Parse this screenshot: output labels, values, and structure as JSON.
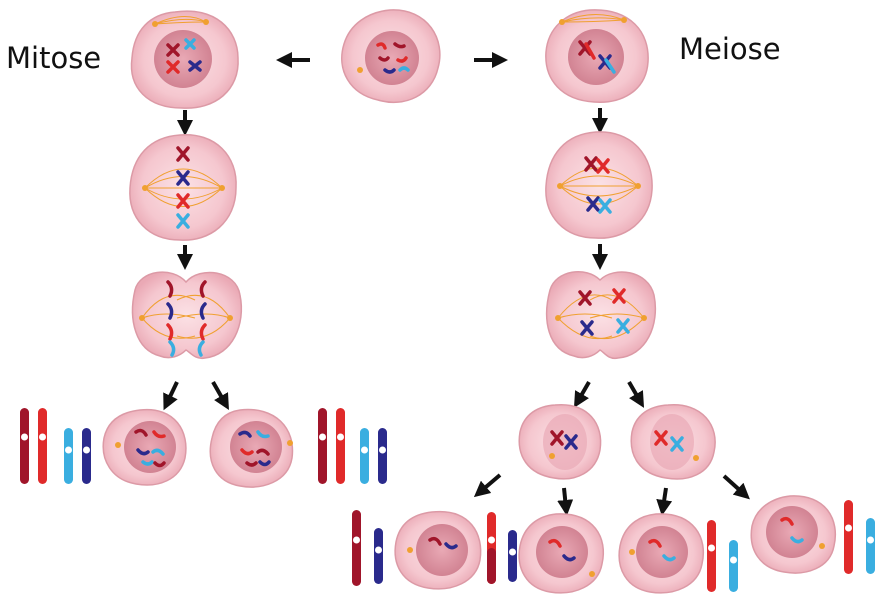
{
  "labels": {
    "mitosis": "Mitose",
    "meiosis": "Meiose"
  },
  "colors": {
    "cell_fill": "#f5c7cf",
    "cell_stroke": "#dc9aa6",
    "nucleus_fill": "#d98b99",
    "spindle": "#f0a030",
    "chrom_dark_red": "#a0152a",
    "chrom_red": "#e02a2a",
    "chrom_dark_blue": "#2a2a8c",
    "chrom_light_blue": "#3aaee0",
    "arrow": "#111111"
  },
  "icons": [
    "arrow-icon",
    "cell-icon",
    "chromosome-icon",
    "centrosome-icon"
  ]
}
